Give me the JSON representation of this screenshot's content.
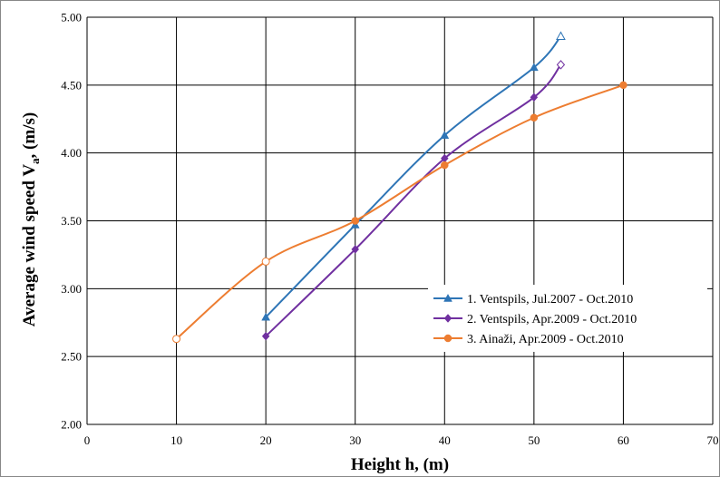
{
  "chart_data": {
    "type": "line",
    "title": "",
    "xlabel": "Height h, (m)",
    "ylabel_main": "Average wind speed V",
    "ylabel_sub": "a",
    "ylabel_tail": ", (m/s)",
    "xlim": [
      0,
      70
    ],
    "ylim": [
      2.0,
      5.0
    ],
    "xticks": [
      0,
      10,
      20,
      30,
      40,
      50,
      60,
      70
    ],
    "yticks": [
      2.0,
      2.5,
      3.0,
      3.5,
      4.0,
      4.5,
      5.0
    ],
    "ytick_labels": [
      "2.00",
      "2.50",
      "3.00",
      "3.50",
      "4.00",
      "4.50",
      "5.00"
    ],
    "grid": true,
    "legend_position": "bottom-right",
    "series": [
      {
        "name": "1. Ventspils, Jul.2007 - Oct.2010",
        "color": "#2E75B6",
        "marker": "triangle",
        "x": [
          20,
          30,
          40,
          50,
          53
        ],
        "y": [
          2.79,
          3.47,
          4.13,
          4.63,
          4.86
        ],
        "open_markers": [
          53
        ]
      },
      {
        "name": "2. Ventspils, Apr.2009 - Oct.2010",
        "color": "#7030A0",
        "marker": "diamond",
        "x": [
          20,
          30,
          40,
          50,
          53
        ],
        "y": [
          2.65,
          3.29,
          3.96,
          4.41,
          4.65
        ],
        "open_markers": [
          53
        ]
      },
      {
        "name": "3. Ainaži, Apr.2009 - Oct.2010",
        "color": "#ED7D31",
        "marker": "circle",
        "x": [
          10,
          20,
          30,
          40,
          50,
          60
        ],
        "y": [
          2.63,
          3.2,
          3.5,
          3.91,
          4.26,
          4.5
        ],
        "open_markers": [
          10,
          20
        ]
      }
    ]
  }
}
